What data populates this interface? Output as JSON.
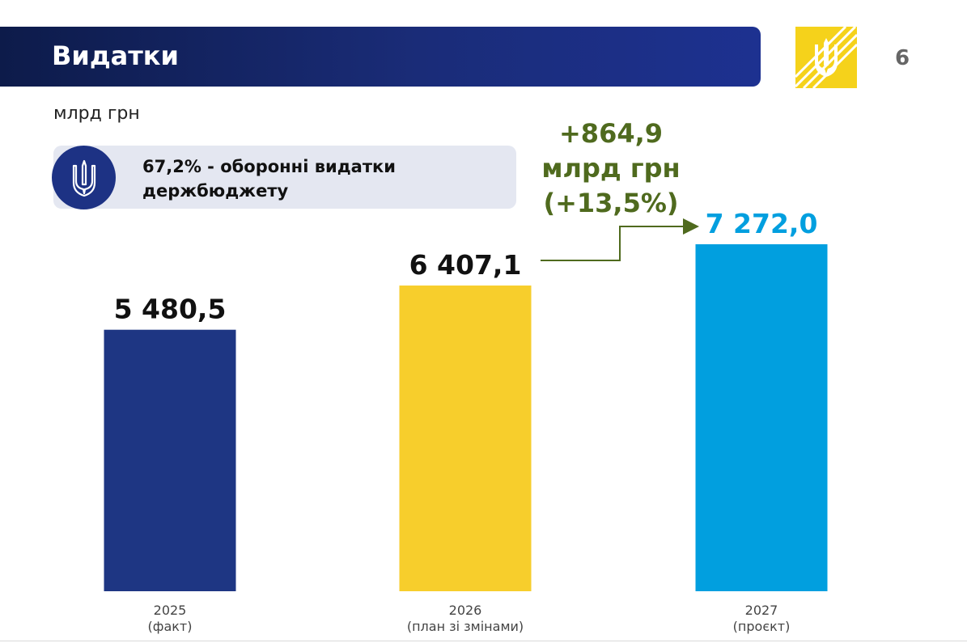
{
  "slide": {
    "title": "Видатки",
    "page_number": "6",
    "units": "млрд грн",
    "info_text": "67,2% - оборонні видатки держбюджету"
  },
  "growth": {
    "line1": "+864,9",
    "line2": "млрд грн",
    "line3": "(+13,5%)"
  },
  "colors": {
    "banner": "#1a2c78",
    "bar_2025": "#1e3683",
    "bar_2026": "#f7ce2c",
    "bar_2027": "#019fdf",
    "growth_text": "#4f6a1e",
    "logo_bg": "#f5d21b"
  },
  "icons": [
    "trident-logo-icon",
    "trident-emblem-icon",
    "growth-arrow-icon"
  ],
  "chart_data": {
    "type": "bar",
    "categories": [
      "2025",
      "2026",
      "2027"
    ],
    "category_notes": [
      "(факт)",
      "(план зі змінами)",
      "(проєкт)"
    ],
    "values": [
      5480.5,
      6407.1,
      7272.0
    ],
    "value_labels": [
      "5 480,5",
      "6 407,1",
      "7 272,0"
    ],
    "bar_colors": [
      "#1e3683",
      "#f7ce2c",
      "#019fdf"
    ],
    "value_label_colors": [
      "#111111",
      "#111111",
      "#019fdf"
    ],
    "ylabel": "млрд грн",
    "ylim": [
      0,
      7272.0
    ],
    "grid": false,
    "legend": "none"
  }
}
